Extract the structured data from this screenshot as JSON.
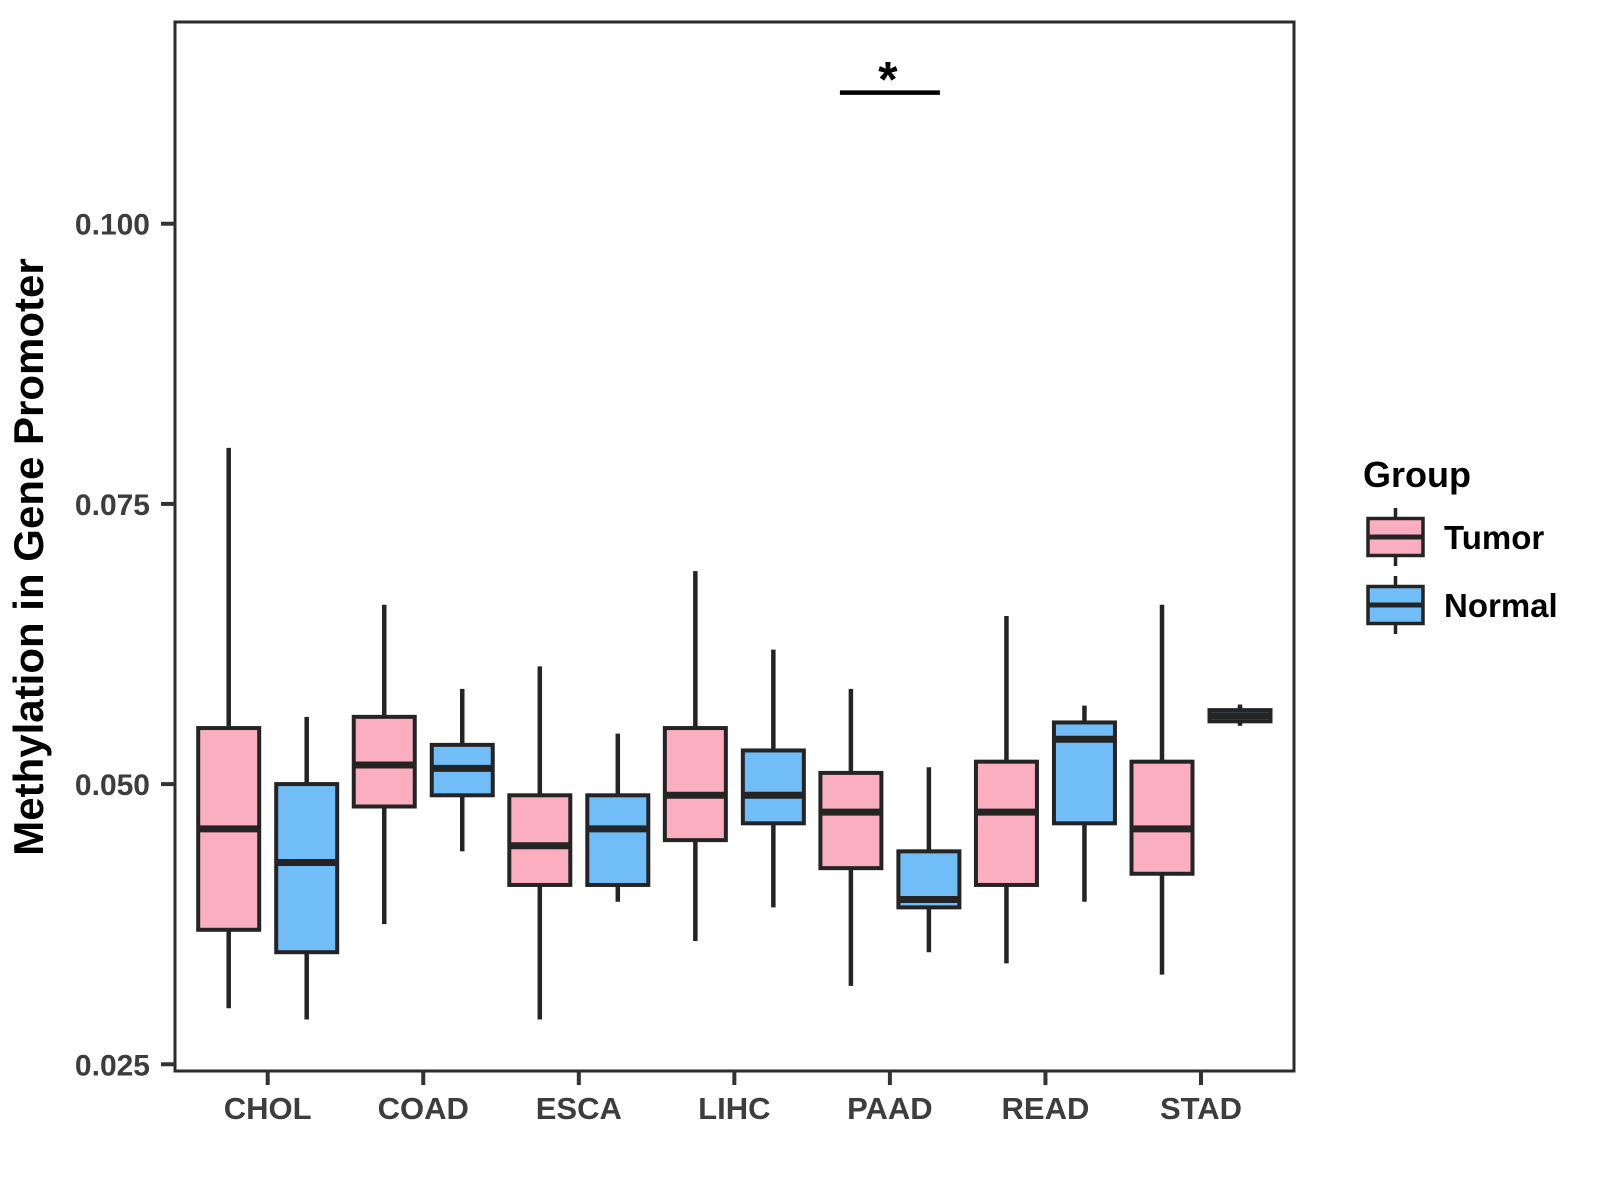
{
  "chart_data": {
    "type": "boxplot",
    "title": "",
    "xlabel": "",
    "ylabel": "Methylation in Gene Promoter",
    "categories": [
      "CHOL",
      "COAD",
      "ESCA",
      "LIHC",
      "PAAD",
      "READ",
      "STAD"
    ],
    "y_ticks": [
      0.025,
      0.05,
      0.075,
      0.1
    ],
    "y_tick_labels": [
      "0.025",
      "0.050",
      "0.075",
      "0.100"
    ],
    "ylim": [
      0.0244,
      0.118
    ],
    "grid": "off",
    "legend": {
      "title": "Group",
      "position": "right",
      "entries": [
        {
          "label": "Tumor",
          "color": "#FBAEBF"
        },
        {
          "label": "Normal",
          "color": "#71BDF7"
        }
      ]
    },
    "colors": {
      "tumor_fill": "#FBAEBF",
      "normal_fill": "#71BDF7",
      "box_stroke": "#242424",
      "panel_border": "#2b2b2b",
      "axis_text": "#3d3d3d"
    },
    "series": [
      {
        "name": "Tumor",
        "color": "#FBAEBF",
        "boxes": [
          {
            "category": "CHOL",
            "min": 0.03,
            "q1": 0.037,
            "median": 0.046,
            "q3": 0.055,
            "max": 0.08
          },
          {
            "category": "COAD",
            "min": 0.0375,
            "q1": 0.048,
            "median": 0.0517,
            "q3": 0.056,
            "max": 0.066
          },
          {
            "category": "ESCA",
            "min": 0.029,
            "q1": 0.041,
            "median": 0.0445,
            "q3": 0.049,
            "max": 0.0605
          },
          {
            "category": "LIHC",
            "min": 0.036,
            "q1": 0.045,
            "median": 0.049,
            "q3": 0.055,
            "max": 0.069
          },
          {
            "category": "PAAD",
            "min": 0.032,
            "q1": 0.0425,
            "median": 0.0475,
            "q3": 0.051,
            "max": 0.0585
          },
          {
            "category": "READ",
            "min": 0.034,
            "q1": 0.041,
            "median": 0.0475,
            "q3": 0.052,
            "max": 0.065
          },
          {
            "category": "STAD",
            "min": 0.033,
            "q1": 0.042,
            "median": 0.046,
            "q3": 0.052,
            "max": 0.066
          }
        ]
      },
      {
        "name": "Normal",
        "color": "#71BDF7",
        "boxes": [
          {
            "category": "CHOL",
            "min": 0.029,
            "q1": 0.035,
            "median": 0.043,
            "q3": 0.05,
            "max": 0.056
          },
          {
            "category": "COAD",
            "min": 0.044,
            "q1": 0.049,
            "median": 0.0514,
            "q3": 0.0535,
            "max": 0.0585
          },
          {
            "category": "ESCA",
            "min": 0.0395,
            "q1": 0.041,
            "median": 0.046,
            "q3": 0.049,
            "max": 0.0545
          },
          {
            "category": "LIHC",
            "min": 0.039,
            "q1": 0.0465,
            "median": 0.049,
            "q3": 0.053,
            "max": 0.062
          },
          {
            "category": "PAAD",
            "min": 0.035,
            "q1": 0.039,
            "median": 0.0397,
            "q3": 0.044,
            "max": 0.0515
          },
          {
            "category": "READ",
            "min": 0.0395,
            "q1": 0.0465,
            "median": 0.054,
            "q3": 0.0555,
            "max": 0.057
          },
          {
            "category": "STAD",
            "min": 0.0552,
            "q1": 0.0556,
            "median": 0.0561,
            "q3": 0.0566,
            "max": 0.0571
          }
        ]
      }
    ],
    "annotation": {
      "label": "*",
      "category": "PAAD",
      "compares": [
        "Tumor",
        "Normal"
      ],
      "y": 0.1117
    }
  }
}
